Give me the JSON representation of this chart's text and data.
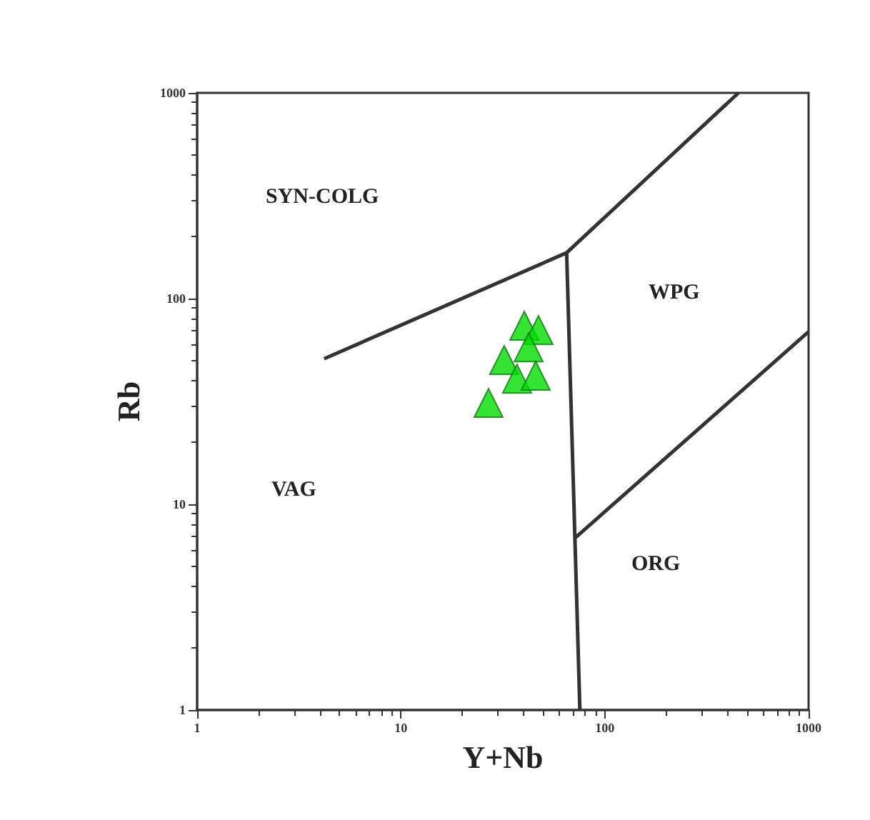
{
  "chart_data": {
    "type": "scatter",
    "xlabel": "Y+Nb",
    "ylabel": "Rb",
    "log": "xy",
    "grid": false,
    "xlim": [
      1,
      1000
    ],
    "ylim": [
      1,
      1000
    ],
    "xticks": [
      1,
      10,
      100,
      1000
    ],
    "yticks": [
      1,
      10,
      100,
      1000
    ],
    "series": [
      {
        "marker": "triangle",
        "color": "#00dd00",
        "x": [
          40.3,
          47.3,
          32.1,
          42.3,
          37.1,
          45.8,
          26.9
        ],
        "values": [
          73.8,
          70.3,
          50.3,
          58.0,
          40.8,
          42.2,
          31.1
        ]
      },
      {
        "type": "line",
        "marker": "none",
        "color": "#333333",
        "x": [
          4.2,
          65,
          453
        ],
        "values": [
          51,
          167,
          1000
        ]
      },
      {
        "type": "line",
        "marker": "none",
        "color": "#333333",
        "x": [
          65,
          75.5
        ],
        "values": [
          167,
          1
        ]
      },
      {
        "type": "line",
        "marker": "none",
        "color": "#333333",
        "x": [
          72,
          1000
        ],
        "values": [
          6.9,
          69
        ]
      }
    ],
    "annotations": [
      "SYN-COLG",
      "WPG",
      "ORG",
      "VAG"
    ]
  }
}
